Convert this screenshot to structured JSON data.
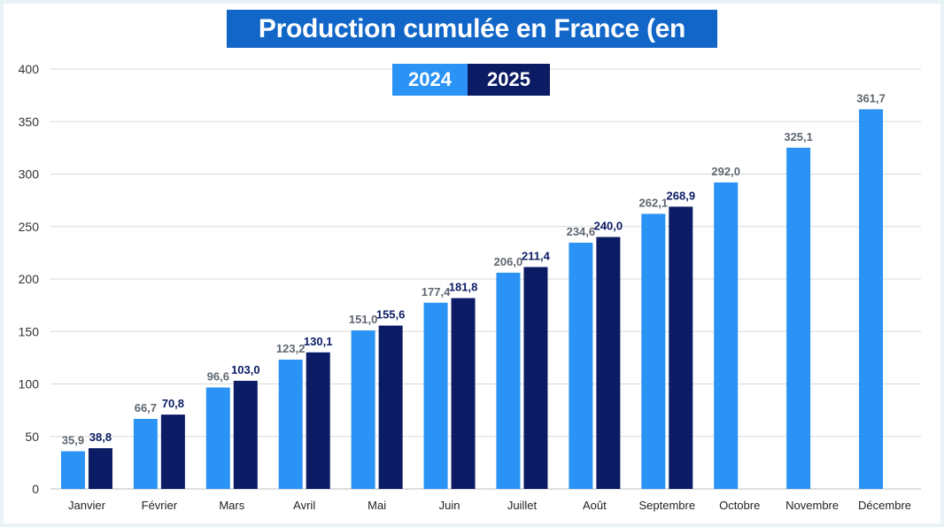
{
  "colors": {
    "series_2024": "#2a93f5",
    "series_2025": "#0b1b64",
    "label_2024": "#5f6770",
    "label_2025": "#0b1b64",
    "title_bg": "#1166c8",
    "grid": "#d9d9d9"
  },
  "chart_data": {
    "type": "bar",
    "title": "Production cumulée en France (en TWh)",
    "xlabel": "",
    "ylabel": "",
    "ylim": [
      0,
      400
    ],
    "yticks": [
      0,
      50,
      100,
      150,
      200,
      250,
      300,
      350,
      400
    ],
    "grid": true,
    "legend_position": "top-center",
    "categories": [
      "Janvier",
      "Février",
      "Mars",
      "Avril",
      "Mai",
      "Juin",
      "Juillet",
      "Août",
      "Septembre",
      "Octobre",
      "Novembre",
      "Décembre"
    ],
    "series": [
      {
        "name": "2024",
        "values": [
          35.9,
          66.7,
          96.6,
          123.2,
          151.0,
          177.4,
          206.0,
          234.6,
          262.1,
          292.0,
          325.1,
          361.7
        ],
        "labels": [
          "35,9",
          "66,7",
          "96,6",
          "123,2",
          "151,0",
          "177,4",
          "206,0",
          "234,6",
          "262,1",
          "292,0",
          "325,1",
          "361,7"
        ]
      },
      {
        "name": "2025",
        "values": [
          38.8,
          70.8,
          103.0,
          130.1,
          155.6,
          181.8,
          211.4,
          240.0,
          268.9,
          null,
          null,
          null
        ],
        "labels": [
          "38,8",
          "70,8",
          "103,0",
          "130,1",
          "155,6",
          "181,8",
          "211,4",
          "240,0",
          "268,9",
          null,
          null,
          null
        ]
      }
    ]
  }
}
